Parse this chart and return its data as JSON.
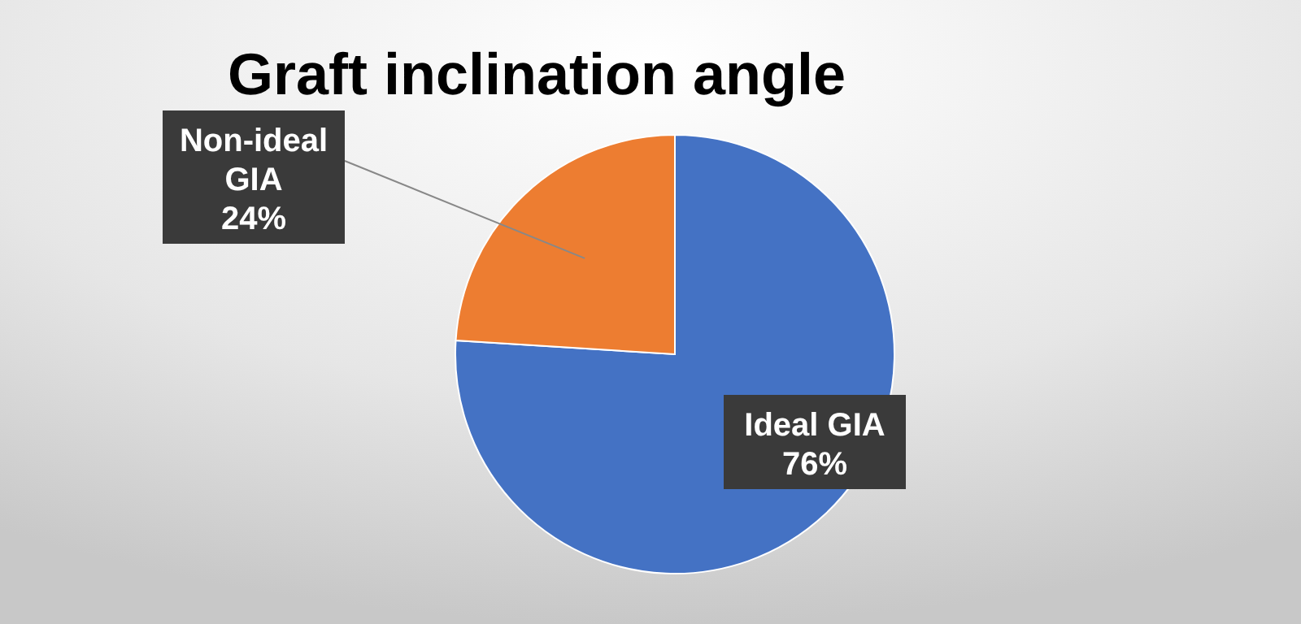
{
  "chart_data": {
    "type": "pie",
    "title": "Graft inclination angle",
    "categories": [
      "Ideal GIA",
      "Non-ideal GIA"
    ],
    "values": [
      76,
      24
    ],
    "colors": [
      "#4472c4",
      "#ed7d31"
    ],
    "value_labels": [
      "76%",
      "24%"
    ]
  }
}
